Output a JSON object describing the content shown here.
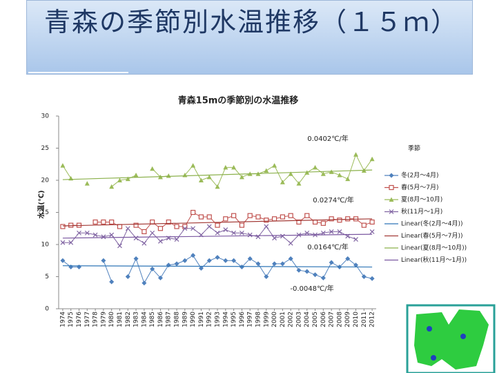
{
  "slide_title": "青森の季節別水温推移（１５ｍ）",
  "chart_data": {
    "type": "line",
    "title": "青森15mの季節別の水温推移",
    "y_label": "水温(℃)",
    "legend_title": "季節",
    "legend": "right",
    "grid": false,
    "x": [
      1974,
      1975,
      1976,
      1977,
      1978,
      1979,
      1980,
      1981,
      1982,
      1983,
      1984,
      1985,
      1986,
      1987,
      1988,
      1989,
      1990,
      1991,
      1992,
      1993,
      1994,
      1995,
      1996,
      1997,
      1998,
      1999,
      2000,
      2001,
      2002,
      2003,
      2004,
      2005,
      2006,
      2007,
      2008,
      2009,
      2010,
      2011,
      2012
    ],
    "ylim": [
      0,
      30
    ],
    "yticks": [
      0,
      5,
      10,
      15,
      20,
      25,
      30
    ],
    "series": [
      {
        "name": "冬(2月～4月)",
        "color": "#4f81bd",
        "marker": "diamond",
        "values": [
          7.5,
          6.5,
          6.5,
          null,
          null,
          7.5,
          4.2,
          null,
          5.0,
          7.8,
          4.0,
          6.2,
          4.8,
          6.8,
          7.0,
          7.5,
          8.3,
          6.3,
          7.5,
          8.0,
          7.5,
          7.5,
          6.5,
          7.8,
          7.0,
          5.0,
          7.0,
          7.0,
          7.8,
          6.0,
          5.8,
          5.3,
          4.8,
          7.2,
          6.5,
          7.8,
          6.8,
          5.0,
          4.7
        ]
      },
      {
        "name": "春(5月～7月)",
        "color": "#c0504d",
        "marker": "square",
        "values": [
          12.8,
          13.0,
          13.0,
          null,
          13.5,
          13.5,
          13.5,
          12.8,
          null,
          13.0,
          12.0,
          13.5,
          12.5,
          13.5,
          12.8,
          12.8,
          15.0,
          14.3,
          14.3,
          13.0,
          14.0,
          14.5,
          13.0,
          14.5,
          14.3,
          13.8,
          14.0,
          14.3,
          14.5,
          13.5,
          14.5,
          13.5,
          13.3,
          14.0,
          13.8,
          14.0,
          14.0,
          13.0,
          13.5
        ]
      },
      {
        "name": "夏(8月～10月)",
        "color": "#9bbb59",
        "marker": "triangle",
        "values": [
          22.3,
          20.3,
          null,
          19.5,
          null,
          null,
          19.0,
          20.0,
          20.2,
          20.8,
          null,
          21.8,
          20.5,
          20.7,
          null,
          20.8,
          22.3,
          20.0,
          20.5,
          19.0,
          22.0,
          22.0,
          20.5,
          21.0,
          21.0,
          21.5,
          22.3,
          19.7,
          21.0,
          19.5,
          21.2,
          22.0,
          21.0,
          21.3,
          20.8,
          20.2,
          24.0,
          21.5,
          23.3
        ]
      },
      {
        "name": "秋(11月～1月)",
        "color": "#8064a2",
        "marker": "x",
        "values": [
          10.3,
          10.3,
          11.8,
          11.8,
          11.5,
          11.2,
          11.5,
          9.8,
          12.5,
          11.0,
          10.2,
          11.8,
          10.5,
          11.0,
          10.8,
          12.5,
          12.5,
          11.5,
          12.8,
          11.8,
          12.3,
          11.8,
          11.8,
          11.5,
          11.2,
          12.8,
          11.0,
          11.3,
          10.2,
          11.5,
          11.8,
          11.5,
          11.8,
          12.0,
          12.0,
          11.3,
          10.8,
          null,
          12.0
        ]
      },
      {
        "name": "Linear(冬(2月～4月))",
        "color": "#2e75b6",
        "x": [
          1974,
          2012
        ],
        "values": [
          6.7,
          6.5
        ]
      },
      {
        "name": "Linear(春(5月～7月))",
        "color": "#a33a36",
        "x": [
          1974,
          2012
        ],
        "values": [
          12.9,
          14.0
        ]
      },
      {
        "name": "Linear(夏(8月～10月))",
        "color": "#8ab04a",
        "x": [
          1974,
          2012
        ],
        "values": [
          20.1,
          21.6
        ]
      },
      {
        "name": "Linear(秋(11月～1月))",
        "color": "#7a57a0",
        "x": [
          1974,
          2012
        ],
        "values": [
          11.0,
          11.6
        ]
      }
    ],
    "annotations": [
      "0.0402℃/年",
      "0.0274℃/年",
      "0.0164℃/年",
      "-0.0048℃/年"
    ]
  }
}
